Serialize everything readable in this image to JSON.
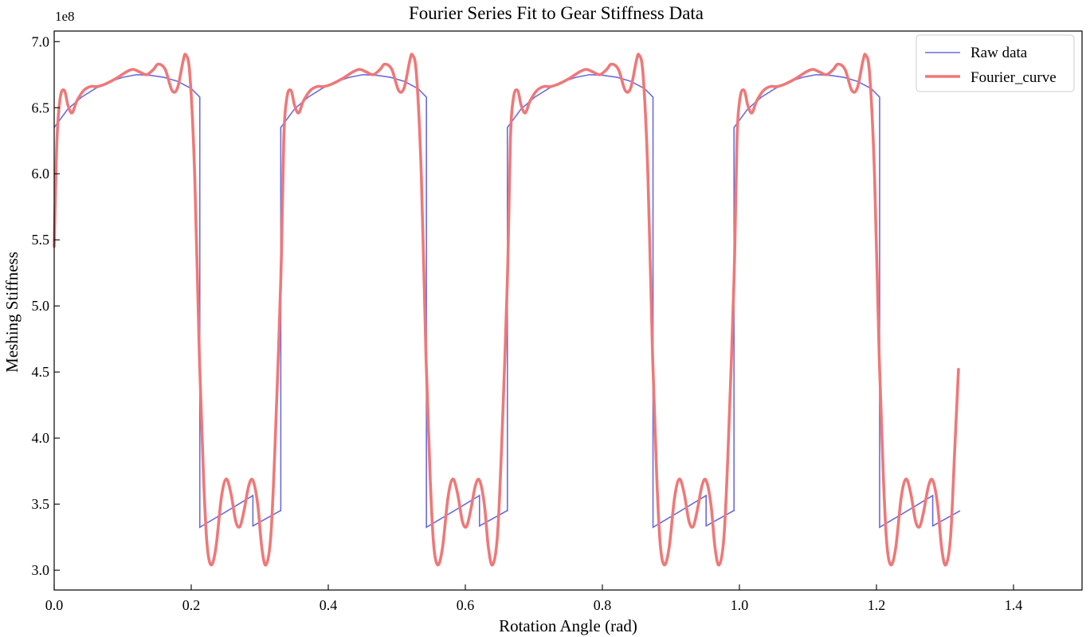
{
  "chart_data": {
    "type": "line",
    "title": "Fourier Series Fit to Gear Stiffness Data",
    "xlabel": "Rotation Angle (rad)",
    "ylabel": "Meshing Stiffness",
    "y_exponent_label": "1e8",
    "xlim": [
      0.0,
      1.5
    ],
    "ylim": [
      2.85,
      7.08
    ],
    "x_ticks": [
      0.0,
      0.2,
      0.4,
      0.6,
      0.8,
      1.0,
      1.2,
      1.4
    ],
    "x_tick_labels": [
      "0.0",
      "0.2",
      "0.4",
      "0.6",
      "0.8",
      "1.0",
      "1.2",
      "1.4"
    ],
    "y_ticks": [
      3.0,
      3.5,
      4.0,
      4.5,
      5.0,
      5.5,
      6.0,
      6.5,
      7.0
    ],
    "y_tick_labels": [
      "3.0",
      "3.5",
      "4.0",
      "4.5",
      "5.0",
      "5.5",
      "6.0",
      "6.5",
      "7.0"
    ],
    "grid": false,
    "legend_position": "upper right",
    "period": 0.3307,
    "x_end": 1.3227,
    "series": [
      {
        "name": "Raw data",
        "color": "#6b6bdc",
        "period_points": [
          [
            0.0,
            6.35
          ],
          [
            0.02,
            6.49
          ],
          [
            0.04,
            6.58
          ],
          [
            0.06,
            6.645
          ],
          [
            0.08,
            6.695
          ],
          [
            0.1,
            6.73
          ],
          [
            0.12,
            6.75
          ],
          [
            0.14,
            6.745
          ],
          [
            0.16,
            6.73
          ],
          [
            0.18,
            6.7
          ],
          [
            0.2,
            6.645
          ],
          [
            0.2125,
            6.58
          ],
          [
            0.2125,
            3.325
          ],
          [
            0.25,
            3.44
          ],
          [
            0.29,
            3.565
          ],
          [
            0.29,
            3.335
          ],
          [
            0.33,
            3.45
          ],
          [
            0.3307,
            3.45
          ]
        ]
      },
      {
        "name": "Fourier_curve",
        "color": "#ef7878",
        "points": [
          [
            0.0,
            5.45
          ],
          [
            0.004,
            6.25
          ],
          [
            0.009,
            6.58
          ],
          [
            0.015,
            6.63
          ],
          [
            0.02,
            6.52
          ],
          [
            0.026,
            6.46
          ],
          [
            0.033,
            6.55
          ],
          [
            0.043,
            6.63
          ],
          [
            0.053,
            6.66
          ],
          [
            0.063,
            6.66
          ],
          [
            0.075,
            6.68
          ],
          [
            0.09,
            6.72
          ],
          [
            0.105,
            6.77
          ],
          [
            0.115,
            6.79
          ],
          [
            0.125,
            6.77
          ],
          [
            0.135,
            6.75
          ],
          [
            0.145,
            6.79
          ],
          [
            0.152,
            6.83
          ],
          [
            0.162,
            6.79
          ],
          [
            0.172,
            6.63
          ],
          [
            0.18,
            6.65
          ],
          [
            0.188,
            6.85
          ],
          [
            0.192,
            6.9
          ],
          [
            0.198,
            6.75
          ],
          [
            0.205,
            6.0
          ],
          [
            0.212,
            4.6
          ],
          [
            0.218,
            3.7
          ],
          [
            0.223,
            3.2
          ],
          [
            0.229,
            3.04
          ],
          [
            0.236,
            3.17
          ],
          [
            0.244,
            3.55
          ],
          [
            0.251,
            3.69
          ],
          [
            0.258,
            3.58
          ],
          [
            0.265,
            3.37
          ],
          [
            0.271,
            3.33
          ],
          [
            0.277,
            3.45
          ],
          [
            0.284,
            3.64
          ],
          [
            0.29,
            3.68
          ],
          [
            0.297,
            3.5
          ],
          [
            0.303,
            3.17
          ],
          [
            0.309,
            3.04
          ],
          [
            0.316,
            3.25
          ],
          [
            0.322,
            3.9
          ],
          [
            0.3307,
            5.2
          ],
          [
            0.335,
            6.25
          ],
          [
            0.3397,
            6.58
          ],
          [
            0.3457,
            6.63
          ],
          [
            0.3507,
            6.52
          ],
          [
            0.3567,
            6.46
          ],
          [
            0.3637,
            6.55
          ],
          [
            0.3737,
            6.63
          ],
          [
            0.3837,
            6.66
          ],
          [
            0.3937,
            6.66
          ],
          [
            0.4057,
            6.68
          ],
          [
            0.4207,
            6.72
          ],
          [
            0.4357,
            6.77
          ],
          [
            0.4457,
            6.79
          ],
          [
            0.4557,
            6.77
          ],
          [
            0.4657,
            6.75
          ],
          [
            0.4757,
            6.79
          ],
          [
            0.4827,
            6.83
          ],
          [
            0.4927,
            6.79
          ],
          [
            0.5027,
            6.63
          ],
          [
            0.5107,
            6.65
          ],
          [
            0.5187,
            6.85
          ],
          [
            0.5227,
            6.9
          ],
          [
            0.5287,
            6.75
          ],
          [
            0.5357,
            6.0
          ],
          [
            0.5427,
            4.6
          ],
          [
            0.5487,
            3.7
          ],
          [
            0.5537,
            3.2
          ],
          [
            0.5597,
            3.04
          ],
          [
            0.5667,
            3.17
          ],
          [
            0.5747,
            3.55
          ],
          [
            0.5817,
            3.69
          ],
          [
            0.5887,
            3.58
          ],
          [
            0.5957,
            3.37
          ],
          [
            0.6017,
            3.33
          ],
          [
            0.6077,
            3.45
          ],
          [
            0.6147,
            3.64
          ],
          [
            0.6207,
            3.68
          ],
          [
            0.6277,
            3.5
          ],
          [
            0.6337,
            3.17
          ],
          [
            0.6397,
            3.04
          ],
          [
            0.6467,
            3.25
          ],
          [
            0.6527,
            3.9
          ],
          [
            0.6614,
            5.2
          ],
          [
            0.6657,
            6.25
          ],
          [
            0.6704,
            6.58
          ],
          [
            0.6764,
            6.63
          ],
          [
            0.6814,
            6.52
          ],
          [
            0.6874,
            6.46
          ],
          [
            0.6944,
            6.55
          ],
          [
            0.7044,
            6.63
          ],
          [
            0.7144,
            6.66
          ],
          [
            0.7244,
            6.66
          ],
          [
            0.7364,
            6.68
          ],
          [
            0.7514,
            6.72
          ],
          [
            0.7664,
            6.77
          ],
          [
            0.7764,
            6.79
          ],
          [
            0.7864,
            6.77
          ],
          [
            0.7964,
            6.75
          ],
          [
            0.8064,
            6.79
          ],
          [
            0.8134,
            6.83
          ],
          [
            0.8234,
            6.79
          ],
          [
            0.8334,
            6.63
          ],
          [
            0.8414,
            6.65
          ],
          [
            0.8494,
            6.85
          ],
          [
            0.8534,
            6.9
          ],
          [
            0.8594,
            6.75
          ],
          [
            0.8664,
            6.0
          ],
          [
            0.8734,
            4.6
          ],
          [
            0.8794,
            3.7
          ],
          [
            0.8844,
            3.2
          ],
          [
            0.8904,
            3.04
          ],
          [
            0.8974,
            3.17
          ],
          [
            0.9054,
            3.55
          ],
          [
            0.9124,
            3.69
          ],
          [
            0.9194,
            3.58
          ],
          [
            0.9264,
            3.37
          ],
          [
            0.9324,
            3.33
          ],
          [
            0.9384,
            3.45
          ],
          [
            0.9454,
            3.64
          ],
          [
            0.9514,
            3.68
          ],
          [
            0.9584,
            3.5
          ],
          [
            0.9644,
            3.17
          ],
          [
            0.9704,
            3.04
          ],
          [
            0.9774,
            3.25
          ],
          [
            0.9834,
            3.9
          ],
          [
            0.9921,
            5.2
          ],
          [
            0.9964,
            6.25
          ],
          [
            1.0011,
            6.58
          ],
          [
            1.0071,
            6.63
          ],
          [
            1.0121,
            6.52
          ],
          [
            1.0181,
            6.46
          ],
          [
            1.0251,
            6.55
          ],
          [
            1.0351,
            6.63
          ],
          [
            1.0451,
            6.66
          ],
          [
            1.0551,
            6.66
          ],
          [
            1.0671,
            6.68
          ],
          [
            1.0821,
            6.72
          ],
          [
            1.0971,
            6.77
          ],
          [
            1.1071,
            6.79
          ],
          [
            1.1171,
            6.77
          ],
          [
            1.1271,
            6.75
          ],
          [
            1.1371,
            6.79
          ],
          [
            1.1441,
            6.83
          ],
          [
            1.1541,
            6.79
          ],
          [
            1.1641,
            6.63
          ],
          [
            1.1721,
            6.65
          ],
          [
            1.1801,
            6.85
          ],
          [
            1.1841,
            6.9
          ],
          [
            1.1901,
            6.75
          ],
          [
            1.1971,
            6.0
          ],
          [
            1.2041,
            4.6
          ],
          [
            1.2101,
            3.7
          ],
          [
            1.2151,
            3.2
          ],
          [
            1.2211,
            3.04
          ],
          [
            1.2281,
            3.17
          ],
          [
            1.2361,
            3.55
          ],
          [
            1.2431,
            3.69
          ],
          [
            1.2501,
            3.58
          ],
          [
            1.2571,
            3.37
          ],
          [
            1.2631,
            3.33
          ],
          [
            1.2691,
            3.45
          ],
          [
            1.2761,
            3.64
          ],
          [
            1.2821,
            3.68
          ],
          [
            1.2891,
            3.5
          ],
          [
            1.2951,
            3.17
          ],
          [
            1.3011,
            3.04
          ],
          [
            1.3081,
            3.25
          ],
          [
            1.3141,
            3.9
          ],
          [
            1.3197,
            4.52
          ]
        ]
      }
    ]
  }
}
